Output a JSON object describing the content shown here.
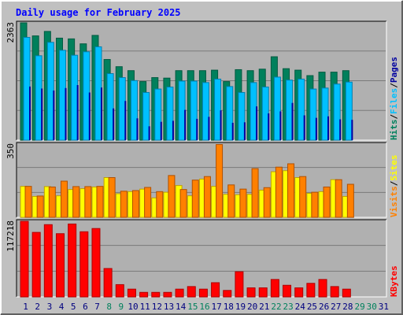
{
  "title": "Daily usage for February 2025",
  "colors": {
    "background": "#c0c0c0",
    "plot_bg": "#b0b0b0",
    "grid": "#7a7a7a",
    "title": "#0000ff",
    "hits_main": "#00805c",
    "hits_dark": "#005a40",
    "files_main": "#00c0ff",
    "files_dark": "#0080b0",
    "pages_dark": "#0000a0",
    "sites_main": "#ffff00",
    "sites_dark": "#c0a000",
    "visits_main": "#ff8000",
    "visits_dark": "#b05000",
    "kbytes_main": "#ff0000",
    "kbytes_dark": "#b00000",
    "weekday_label": "#00007f",
    "weekend_label": "#00805c"
  },
  "chart_data": [
    {
      "type": "bar",
      "panel": "hits-files-pages",
      "ymax_label": "2363",
      "ylim": [
        0,
        2363
      ],
      "legend": [
        {
          "label": "Hits",
          "color": "#00805c"
        },
        {
          "label": "/",
          "color": "#000000"
        },
        {
          "label": "Files",
          "color": "#00c0ff"
        },
        {
          "label": "/",
          "color": "#000000"
        },
        {
          "label": "Pages",
          "color": "#0000a0"
        }
      ],
      "categories": [
        "1",
        "2",
        "3",
        "4",
        "5",
        "6",
        "7",
        "8",
        "9",
        "10",
        "11",
        "12",
        "13",
        "14",
        "15",
        "16",
        "17",
        "18",
        "19",
        "20",
        "21",
        "22",
        "23",
        "24",
        "25",
        "26",
        "27",
        "28",
        "29",
        "30",
        "31"
      ],
      "series": [
        {
          "name": "Hits",
          "values": [
            2363,
            2100,
            2190,
            2055,
            2040,
            1940,
            2110,
            1625,
            1480,
            1400,
            1180,
            1260,
            1250,
            1400,
            1400,
            1400,
            1410,
            1180,
            1420,
            1400,
            1430,
            1680,
            1440,
            1410,
            1300,
            1370,
            1370,
            1400,
            null,
            null,
            null
          ]
        },
        {
          "name": "Files",
          "values": [
            2070,
            1700,
            1970,
            1810,
            1710,
            1780,
            1880,
            1340,
            1260,
            1200,
            960,
            1030,
            1070,
            1190,
            1190,
            1160,
            1230,
            1080,
            960,
            1160,
            1070,
            1270,
            1210,
            1230,
            1030,
            1050,
            1130,
            1170,
            null,
            null,
            null
          ]
        },
        {
          "name": "Pages",
          "values": [
            1080,
            1040,
            1000,
            1050,
            1110,
            960,
            1060,
            640,
            790,
            440,
            280,
            370,
            390,
            610,
            430,
            470,
            600,
            350,
            360,
            680,
            540,
            580,
            750,
            500,
            450,
            480,
            420,
            410,
            null,
            null,
            null
          ]
        }
      ]
    },
    {
      "type": "bar",
      "panel": "sites-visits",
      "ymax_label": "350",
      "ylim": [
        0,
        350
      ],
      "legend": [
        {
          "label": "Visits",
          "color": "#ff8000"
        },
        {
          "label": "/",
          "color": "#000000"
        },
        {
          "label": "Sites",
          "color": "#ffff00"
        }
      ],
      "categories": [
        "1",
        "2",
        "3",
        "4",
        "5",
        "6",
        "7",
        "8",
        "9",
        "10",
        "11",
        "12",
        "13",
        "14",
        "15",
        "16",
        "17",
        "18",
        "19",
        "20",
        "21",
        "22",
        "23",
        "24",
        "25",
        "26",
        "27",
        "28",
        "29",
        "30",
        "31"
      ],
      "series": [
        {
          "name": "Sites",
          "values": [
            148,
            100,
            147,
            103,
            133,
            137,
            145,
            190,
            113,
            123,
            135,
            93,
            120,
            152,
            103,
            183,
            148,
            110,
            108,
            110,
            130,
            218,
            223,
            190,
            115,
            123,
            180,
            100,
            null,
            null,
            null
          ]
        },
        {
          "name": "Visits",
          "values": [
            148,
            102,
            145,
            173,
            147,
            147,
            148,
            190,
            125,
            128,
            143,
            123,
            200,
            133,
            178,
            195,
            348,
            155,
            135,
            233,
            142,
            240,
            256,
            195,
            120,
            145,
            180,
            158,
            null,
            null,
            null
          ]
        }
      ]
    },
    {
      "type": "bar",
      "panel": "kbytes",
      "ymax_label": "117218",
      "ylim": [
        0,
        117218
      ],
      "legend": [
        {
          "label": "KBytes",
          "color": "#ff0000"
        }
      ],
      "categories": [
        "1",
        "2",
        "3",
        "4",
        "5",
        "6",
        "7",
        "8",
        "9",
        "10",
        "11",
        "12",
        "13",
        "14",
        "15",
        "16",
        "17",
        "18",
        "19",
        "20",
        "21",
        "22",
        "23",
        "24",
        "25",
        "26",
        "27",
        "28",
        "29",
        "30",
        "31"
      ],
      "series": [
        {
          "name": "KBytes",
          "values": [
            117218,
            100000,
            112000,
            98000,
            113000,
            101000,
            106000,
            44000,
            19000,
            12000,
            7000,
            7000,
            7000,
            12000,
            16000,
            12000,
            22000,
            10000,
            39000,
            14000,
            14000,
            27000,
            18000,
            14000,
            21000,
            27000,
            16000,
            12000,
            null,
            null,
            null
          ]
        }
      ]
    }
  ],
  "x_labels": [
    {
      "text": "1",
      "weekend": false
    },
    {
      "text": "2",
      "weekend": false
    },
    {
      "text": "3",
      "weekend": false
    },
    {
      "text": "4",
      "weekend": false
    },
    {
      "text": "5",
      "weekend": false
    },
    {
      "text": "6",
      "weekend": false
    },
    {
      "text": "7",
      "weekend": false
    },
    {
      "text": "8",
      "weekend": true
    },
    {
      "text": "9",
      "weekend": true
    },
    {
      "text": "10",
      "weekend": false
    },
    {
      "text": "11",
      "weekend": false
    },
    {
      "text": "12",
      "weekend": false
    },
    {
      "text": "13",
      "weekend": false
    },
    {
      "text": "14",
      "weekend": false
    },
    {
      "text": "15",
      "weekend": true
    },
    {
      "text": "16",
      "weekend": true
    },
    {
      "text": "17",
      "weekend": false
    },
    {
      "text": "18",
      "weekend": false
    },
    {
      "text": "19",
      "weekend": false
    },
    {
      "text": "20",
      "weekend": false
    },
    {
      "text": "21",
      "weekend": false
    },
    {
      "text": "22",
      "weekend": true
    },
    {
      "text": "23",
      "weekend": true
    },
    {
      "text": "24",
      "weekend": false
    },
    {
      "text": "25",
      "weekend": false
    },
    {
      "text": "26",
      "weekend": false
    },
    {
      "text": "27",
      "weekend": false
    },
    {
      "text": "28",
      "weekend": false
    },
    {
      "text": "29",
      "weekend": true
    },
    {
      "text": "30",
      "weekend": true
    },
    {
      "text": "31",
      "weekend": false
    }
  ]
}
